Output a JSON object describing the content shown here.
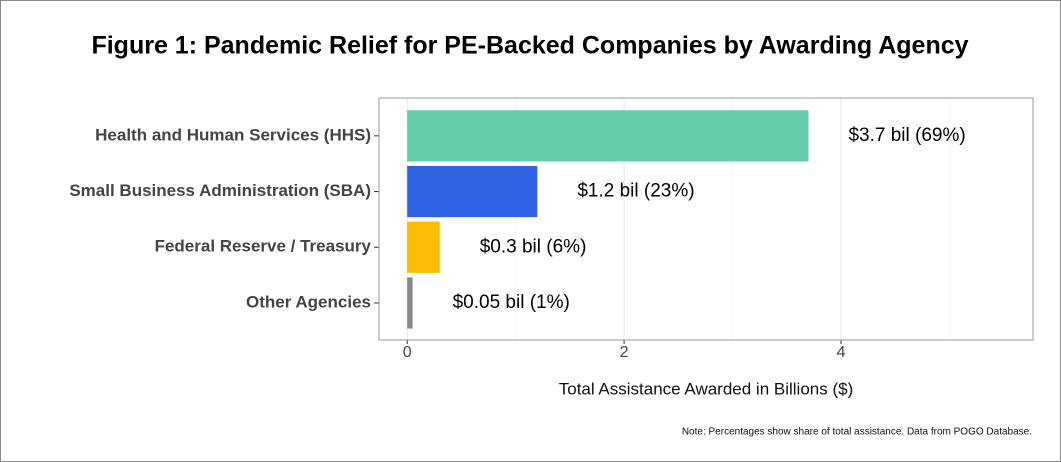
{
  "chart_data": {
    "type": "bar",
    "orientation": "horizontal",
    "title": "Figure 1: Pandemic Relief for PE-Backed Companies by Awarding Agency",
    "categories": [
      "Health and Human Services (HHS)",
      "Small Business Administration (SBA)",
      "Federal Reserve / Treasury",
      "Other Agencies"
    ],
    "values": [
      3.7,
      1.2,
      0.3,
      0.05
    ],
    "value_labels": [
      "$3.7 bil (69%)",
      "$1.2 bil (23%)",
      "$0.3 bil (6%)",
      "$0.05 bil (1%)"
    ],
    "colors": [
      "#66cdaa",
      "#2f64e6",
      "#fbbc05",
      "#888888"
    ],
    "xlim": [
      -0.26,
      5.77
    ],
    "xticks": [
      0,
      2,
      4
    ],
    "x_label": "Total Assistance Awarded in Billions ($)",
    "note": "Note: Percentages show share of total assistance. Data from POGO Database.",
    "grid": true
  }
}
